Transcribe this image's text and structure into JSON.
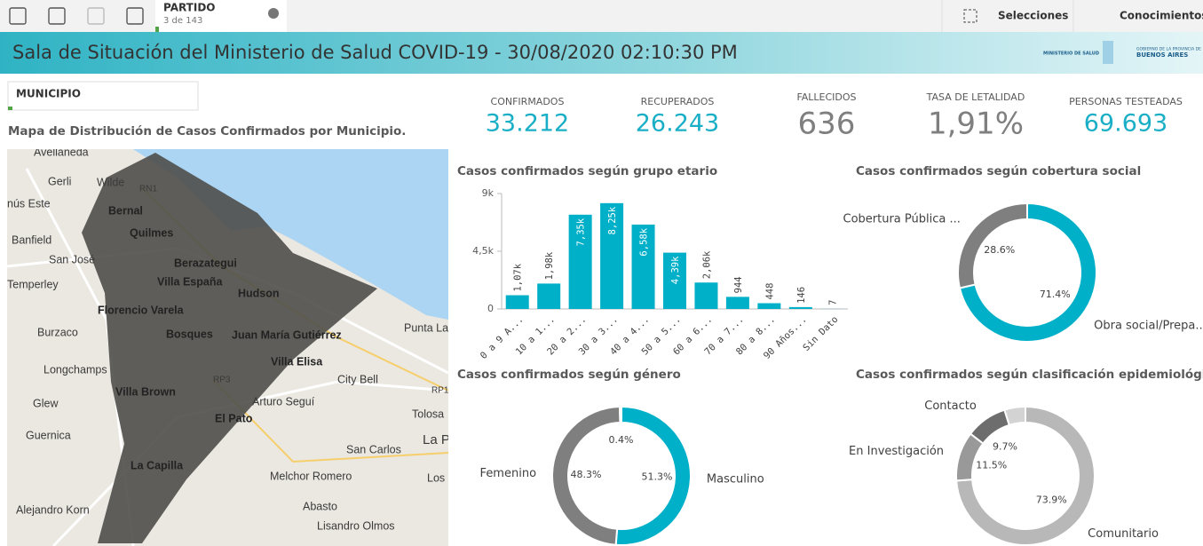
{
  "toolbar": {
    "field": "PARTIDO",
    "count": "3 de 143",
    "selections": "Selecciones",
    "insights": "Conocimientos"
  },
  "header": {
    "title": "Sala de Situación del Ministerio de Salud COVID-19 - 30/08/2020 02:10:30 PM",
    "logo_left": "MINISTERIO DE SALUD",
    "logo_top": "GOBIERNO DE LA PROVINCIA DE",
    "logo_main": "BUENOS AIRES"
  },
  "filter": "MUNICIPIO",
  "map": {
    "title": "Mapa de Distribución de Casos Confirmados por Municipio.",
    "labels": [
      "Avellaneda",
      "Gerli",
      "Wilde",
      "RN1",
      "nús Este",
      "Bernal",
      "Quilmes",
      "Banfield",
      "San José",
      "Temperley",
      "Berazategui",
      "Villa España",
      "Hudson",
      "Florencio Varela",
      "Burzaco",
      "Bosques",
      "Juan María Gutiérrez",
      "Punta La",
      "Longchamps",
      "Villa Elisa",
      "RP3",
      "City Bell",
      "RP1",
      "Villa Brown",
      "Glew",
      "Arturo Seguí",
      "El Pato",
      "Tolosa",
      "Guernica",
      "La P",
      "San Carlos",
      "La Capilla",
      "Melchor Romero",
      "Los Horn",
      "Alejandro Korn",
      "Abasto",
      "Lisandro Olmos"
    ]
  },
  "kpis": [
    {
      "label": "CONFIRMADOS",
      "value": "33.212"
    },
    {
      "label": "RECUPERADOS",
      "value": "26.243"
    },
    {
      "label": "FALLECIDOS",
      "value": "636"
    },
    {
      "label": "TASA DE LETALIDAD",
      "value": "1,91%"
    },
    {
      "label": "PERSONAS TESTEADAS",
      "value": "69.693"
    }
  ],
  "chart_data": [
    {
      "type": "bar",
      "title": "Casos confirmados según grupo etario",
      "categories": [
        "0 a 9 A...",
        "10 a 1...",
        "20 a 2...",
        "30 a 3...",
        "40 a 4...",
        "50 a 5...",
        "60 a 6...",
        "70 a 7...",
        "80 a 8...",
        "90 Años...",
        "Sin Dato"
      ],
      "values": [
        1070,
        1980,
        7350,
        8250,
        6580,
        4390,
        2060,
        944,
        448,
        146,
        7
      ],
      "value_labels": [
        "1,07k",
        "1,98k",
        "7,35k",
        "8,25k",
        "6,58k",
        "4,39k",
        "2,06k",
        "944",
        "448",
        "146",
        "7"
      ],
      "color": "#00b0c8",
      "ylim": [
        0,
        9000
      ],
      "yticks": [
        0,
        {
          "value": 4500,
          "label": "4,5k"
        },
        {
          "value": 9000,
          "label": "9k"
        }
      ]
    },
    {
      "type": "pie",
      "title": "Casos confirmados según cobertura social",
      "categories": [
        "Obra social/Prepa...",
        "Cobertura Pública ..."
      ],
      "values": [
        71.4,
        28.6
      ],
      "value_labels": [
        "71.4%",
        "28.6%"
      ],
      "colors": [
        "#00b0c8",
        "#7f7f7f"
      ]
    },
    {
      "type": "pie",
      "title": "Casos confirmados según género",
      "categories": [
        "Masculino",
        "Femenino",
        null
      ],
      "values": [
        51.3,
        48.3,
        0.4
      ],
      "value_labels": [
        "51.3%",
        "48.3%",
        "0.4%"
      ],
      "colors": [
        "#00b0c8",
        "#7f7f7f",
        "#b5b5b5"
      ]
    },
    {
      "type": "pie",
      "title": "Casos confirmados según clasificación epidemiológica",
      "categories": [
        "Comunitario",
        "En Investigación",
        "Contacto",
        null
      ],
      "values": [
        73.9,
        11.5,
        9.7,
        4.9
      ],
      "value_labels": [
        "73.9%",
        "11.5%",
        "9.7%",
        null
      ],
      "colors": [
        "#b8b8b8",
        "#999999",
        "#6d6d6d",
        "#d3d3d3"
      ]
    }
  ]
}
